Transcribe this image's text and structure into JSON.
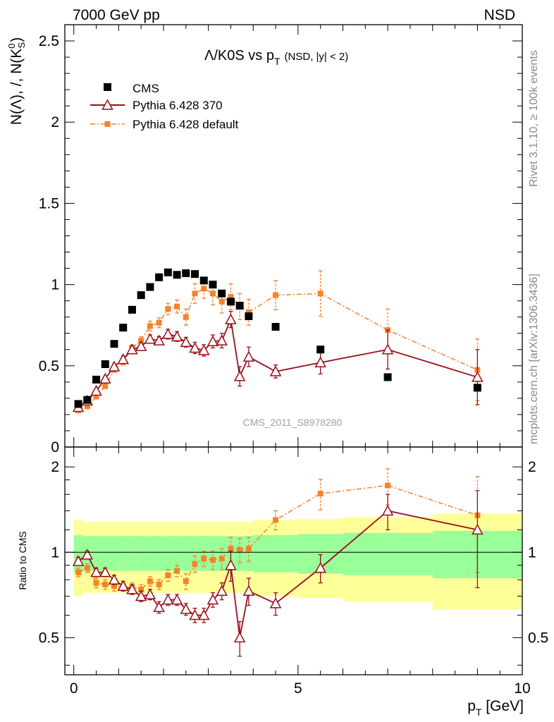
{
  "header": {
    "energy_label": "7000 GeV pp",
    "process_label": "NSD"
  },
  "side_labels": {
    "rivet": "Rivet 3.1.10, ≥ 100k events",
    "mcplots": "mcplots.cern.ch [arXiv:1306.3436]"
  },
  "watermark": "CMS_2011_S8978280",
  "colors": {
    "cms": "#000000",
    "pythia370": "#9a0e1a",
    "pythia_default": "#f5822a",
    "band_inner": "#99ff99",
    "band_outer": "#ffff99"
  },
  "chart_data": [
    {
      "type": "scatter",
      "panel": "main",
      "title": "Λ/K0S vs pT (NSD, |y| < 2)",
      "title_main": "Λ/K0S vs p",
      "title_sub": "T",
      "title_paren": "(NSD, |y| < 2)",
      "ylabel": "N(Λ), /, N(K0S)",
      "ylabel_parts": [
        "N(Λ), /, N(K",
        "0",
        "S",
        ")"
      ],
      "xlim": [
        -0.2,
        10
      ],
      "ylim": [
        0,
        2.6
      ],
      "y_ticks": [
        0,
        0.5,
        1,
        1.5,
        2,
        2.5
      ],
      "y_tick_labels": [
        "0",
        "0.5",
        "1",
        "1.5",
        "2",
        "2.5"
      ],
      "legend_position": "top-left",
      "series": [
        {
          "name": "CMS",
          "marker": "filled-square",
          "x": [
            0.1,
            0.3,
            0.5,
            0.7,
            0.9,
            1.1,
            1.3,
            1.5,
            1.7,
            1.9,
            2.1,
            2.3,
            2.5,
            2.7,
            2.9,
            3.1,
            3.3,
            3.5,
            3.7,
            3.9,
            4.5,
            5.5,
            7.0,
            9.0
          ],
          "y": [
            0.265,
            0.29,
            0.415,
            0.51,
            0.635,
            0.735,
            0.845,
            0.935,
            0.985,
            1.045,
            1.075,
            1.06,
            1.07,
            1.065,
            1.025,
            1.0,
            0.945,
            0.895,
            0.87,
            0.805,
            0.74,
            0.6,
            0.43,
            0.365
          ]
        },
        {
          "name": "Pythia 6.428 370",
          "marker": "open-triangle",
          "x": [
            0.1,
            0.3,
            0.5,
            0.7,
            0.9,
            1.1,
            1.3,
            1.5,
            1.7,
            1.9,
            2.1,
            2.3,
            2.5,
            2.7,
            2.9,
            3.1,
            3.3,
            3.5,
            3.7,
            3.9,
            4.5,
            5.5,
            7.0,
            9.0
          ],
          "y": [
            0.245,
            0.285,
            0.345,
            0.42,
            0.495,
            0.54,
            0.6,
            0.62,
            0.665,
            0.655,
            0.695,
            0.68,
            0.645,
            0.61,
            0.595,
            0.65,
            0.655,
            0.785,
            0.435,
            0.555,
            0.465,
            0.52,
            0.6,
            0.43
          ],
          "err": [
            0.012,
            0.012,
            0.012,
            0.012,
            0.015,
            0.02,
            0.02,
            0.02,
            0.025,
            0.025,
            0.03,
            0.03,
            0.03,
            0.035,
            0.035,
            0.04,
            0.045,
            0.05,
            0.06,
            0.06,
            0.04,
            0.07,
            0.12,
            0.17
          ]
        },
        {
          "name": "Pythia 6.428 default",
          "marker": "small-square-dashdot",
          "x": [
            0.1,
            0.3,
            0.5,
            0.7,
            0.9,
            1.1,
            1.3,
            1.5,
            1.7,
            1.9,
            2.1,
            2.3,
            2.5,
            2.7,
            2.9,
            3.1,
            3.3,
            3.5,
            3.7,
            3.9,
            4.5,
            5.5,
            7.0,
            9.0
          ],
          "y": [
            0.225,
            0.25,
            0.31,
            0.375,
            0.475,
            0.525,
            0.61,
            0.655,
            0.745,
            0.765,
            0.85,
            0.865,
            0.8,
            0.945,
            0.975,
            0.945,
            0.895,
            0.925,
            0.865,
            0.83,
            0.935,
            0.945,
            0.72,
            0.475
          ],
          "err": [
            0.012,
            0.012,
            0.012,
            0.015,
            0.015,
            0.02,
            0.02,
            0.025,
            0.03,
            0.03,
            0.035,
            0.04,
            0.05,
            0.06,
            0.06,
            0.07,
            0.07,
            0.08,
            0.08,
            0.08,
            0.09,
            0.14,
            0.13,
            0.19
          ]
        }
      ]
    },
    {
      "type": "scatter",
      "panel": "ratio",
      "ylabel": "Ratio to CMS",
      "xlabel": "pT [GeV]",
      "xlabel_parts": [
        "p",
        "T",
        " [GeV]"
      ],
      "xlim": [
        -0.2,
        10
      ],
      "ylim": [
        0.37,
        2.35
      ],
      "y_scale": "log",
      "x_ticks": [
        0,
        5,
        10
      ],
      "x_tick_labels": [
        "0",
        "5",
        "10"
      ],
      "y_ticks": [
        0.5,
        1,
        2
      ],
      "y_tick_labels": [
        "0.5",
        "1",
        "2"
      ],
      "reference_line": 1,
      "bands": {
        "x_edges": [
          0,
          0.2,
          0.4,
          0.6,
          0.8,
          1.0,
          1.2,
          1.4,
          1.6,
          1.8,
          2.0,
          2.2,
          2.4,
          2.6,
          2.8,
          3.0,
          3.2,
          3.4,
          3.6,
          3.8,
          4.0,
          5.0,
          6.0,
          8.0,
          10.0
        ],
        "inner_rel_err": [
          0.15,
          0.14,
          0.14,
          0.14,
          0.14,
          0.14,
          0.14,
          0.14,
          0.14,
          0.14,
          0.14,
          0.14,
          0.14,
          0.14,
          0.14,
          0.14,
          0.14,
          0.14,
          0.14,
          0.14,
          0.15,
          0.16,
          0.17,
          0.19
        ],
        "outer_rel_err": [
          0.3,
          0.28,
          0.28,
          0.28,
          0.28,
          0.28,
          0.28,
          0.28,
          0.28,
          0.28,
          0.28,
          0.28,
          0.28,
          0.28,
          0.28,
          0.28,
          0.28,
          0.28,
          0.28,
          0.28,
          0.3,
          0.31,
          0.33,
          0.37
        ]
      },
      "series": [
        {
          "name": "Pythia 6.428 370",
          "x": [
            0.1,
            0.3,
            0.5,
            0.7,
            0.9,
            1.1,
            1.3,
            1.5,
            1.7,
            1.9,
            2.1,
            2.3,
            2.5,
            2.7,
            2.9,
            3.1,
            3.3,
            3.5,
            3.7,
            3.9,
            4.5,
            5.5,
            7.0,
            9.0
          ],
          "y": [
            0.93,
            0.98,
            0.85,
            0.85,
            0.8,
            0.76,
            0.74,
            0.7,
            0.71,
            0.64,
            0.68,
            0.68,
            0.63,
            0.6,
            0.6,
            0.68,
            0.73,
            0.9,
            0.5,
            0.73,
            0.66,
            0.88,
            1.4,
            1.2
          ],
          "err": [
            0.03,
            0.03,
            0.03,
            0.03,
            0.03,
            0.03,
            0.03,
            0.03,
            0.03,
            0.03,
            0.03,
            0.03,
            0.03,
            0.035,
            0.035,
            0.04,
            0.05,
            0.11,
            0.07,
            0.08,
            0.06,
            0.1,
            0.2,
            0.45
          ]
        },
        {
          "name": "Pythia 6.428 default",
          "x": [
            0.1,
            0.3,
            0.5,
            0.7,
            0.9,
            1.1,
            1.3,
            1.5,
            1.7,
            1.9,
            2.1,
            2.3,
            2.5,
            2.7,
            2.9,
            3.1,
            3.3,
            3.5,
            3.7,
            3.9,
            4.5,
            5.5,
            7.0,
            9.0
          ],
          "y": [
            0.85,
            0.88,
            0.78,
            0.77,
            0.76,
            0.76,
            0.75,
            0.74,
            0.79,
            0.77,
            0.83,
            0.86,
            0.79,
            0.91,
            0.95,
            0.94,
            0.95,
            1.03,
            1.02,
            1.03,
            1.3,
            1.61,
            1.72,
            1.35
          ],
          "err": [
            0.03,
            0.03,
            0.03,
            0.03,
            0.03,
            0.03,
            0.03,
            0.03,
            0.03,
            0.03,
            0.04,
            0.04,
            0.05,
            0.06,
            0.06,
            0.07,
            0.08,
            0.1,
            0.1,
            0.1,
            0.1,
            0.2,
            0.25,
            0.5
          ]
        }
      ]
    }
  ]
}
